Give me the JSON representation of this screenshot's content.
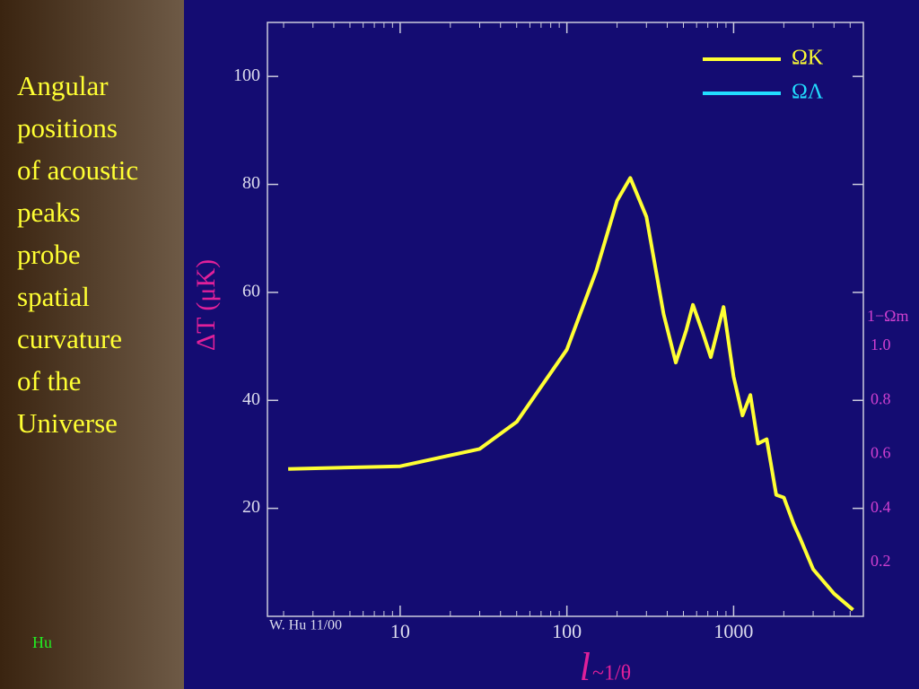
{
  "sidebar": {
    "lines": [
      "Angular",
      "positions",
      "of acoustic",
      "peaks",
      "probe",
      "spatial",
      "curvature",
      "of the",
      "Universe"
    ],
    "author": "Hu"
  },
  "chart_data": {
    "type": "line",
    "credit": "W. Hu 11/00",
    "xlabel_symbol": "l",
    "xlabel": "~1/θ",
    "ylabel": "ΔT (μK)",
    "y2label": "1−Ωm",
    "xscale": "log",
    "xlim": [
      1.6,
      6000
    ],
    "xticks": [
      10,
      100,
      1000
    ],
    "xminorticks": [
      2,
      3,
      4,
      5,
      6,
      7,
      8,
      9,
      20,
      30,
      40,
      50,
      60,
      70,
      80,
      90,
      200,
      300,
      400,
      500,
      600,
      700,
      800,
      900,
      2000,
      3000,
      4000,
      5000
    ],
    "ylim": [
      0,
      110
    ],
    "yticks": [
      20,
      40,
      60,
      80,
      100
    ],
    "y2lim": [
      0,
      2.2
    ],
    "y2ticks": [
      {
        "value": 0.2,
        "label": "0.2"
      },
      {
        "value": 0.4,
        "label": "0.4"
      },
      {
        "value": 0.6,
        "label": "0.6"
      },
      {
        "value": 0.8,
        "label": "0.8"
      },
      {
        "value": 1.0,
        "label": "1.0"
      }
    ],
    "x": [
      2.13,
      10,
      30,
      50,
      100,
      150,
      200,
      240,
      300,
      380,
      450,
      520,
      570,
      650,
      730,
      870,
      1000,
      1130,
      1260,
      1400,
      1580,
      1800,
      2000,
      2300,
      2500,
      3000,
      4000,
      5200
    ],
    "series": [
      {
        "name": "ΩK",
        "color": "#ffff33",
        "values": [
          27.3,
          27.8,
          31,
          36,
          49.4,
          64,
          77,
          81.2,
          74,
          56,
          47,
          53,
          57.7,
          52.7,
          48,
          57.3,
          44.4,
          37.2,
          41,
          32,
          32.8,
          22.5,
          22,
          17,
          14.5,
          8.7,
          4.2,
          1.2
        ]
      },
      {
        "name": "ΩΛ",
        "color": "#22ddff",
        "values": [
          null,
          null,
          null,
          null,
          null,
          null,
          null,
          null,
          null,
          null,
          null,
          null,
          null,
          null,
          null,
          null,
          null,
          null,
          null,
          null,
          null,
          null,
          null,
          null,
          null,
          null,
          null,
          null
        ]
      }
    ]
  }
}
